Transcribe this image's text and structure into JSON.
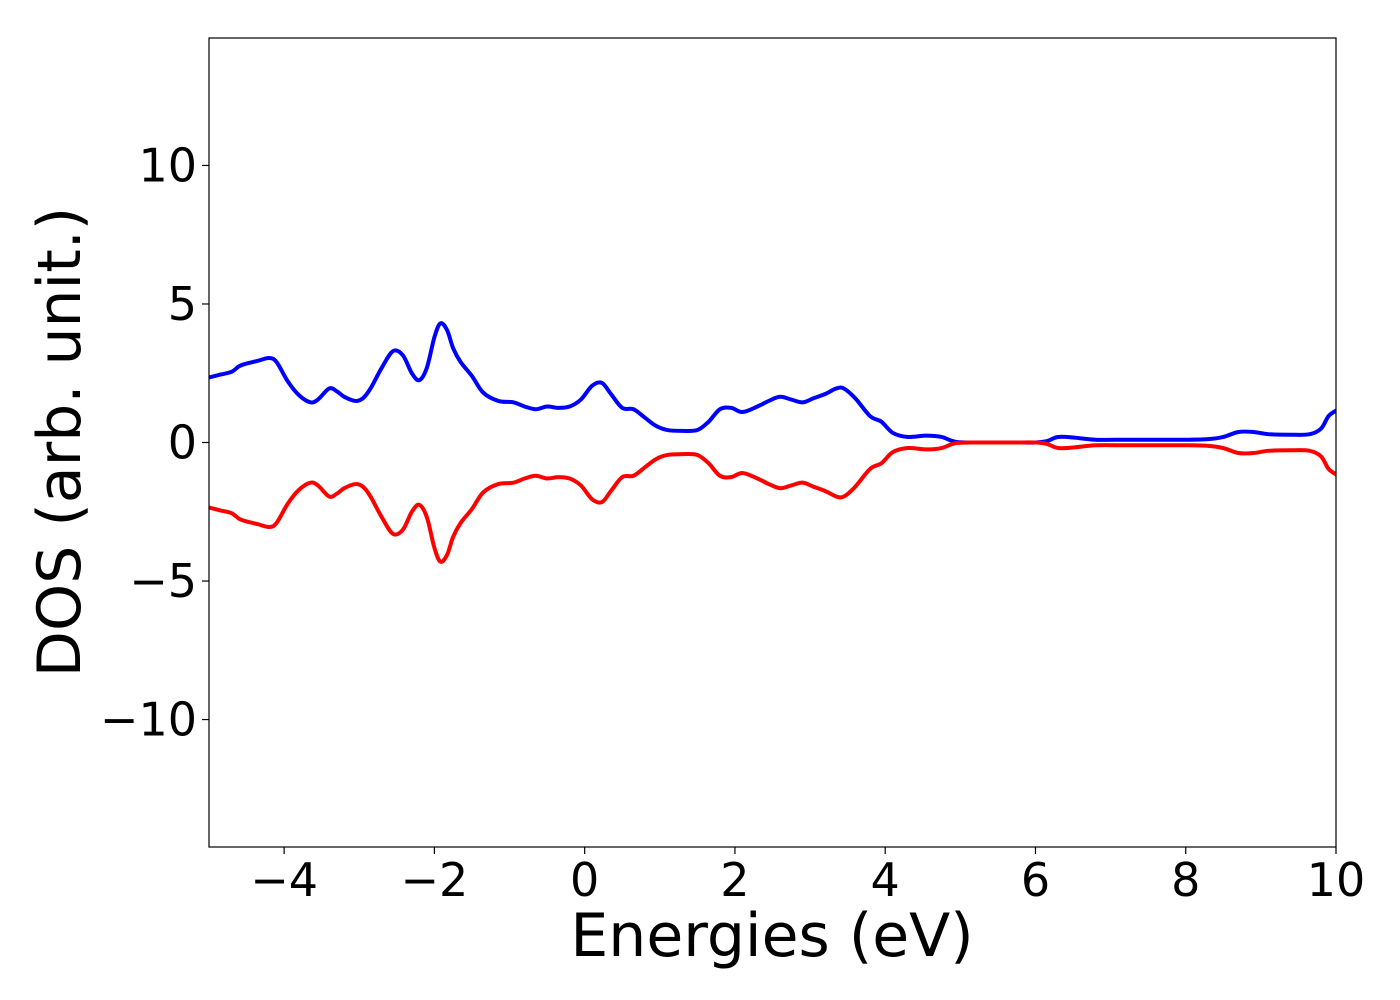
{
  "chart_data": {
    "type": "line",
    "title": "",
    "xlabel": "Energies (eV)",
    "ylabel": "DOS (arb. unit.)",
    "xlim": [
      -5,
      10
    ],
    "ylim": [
      -14.6,
      14.6
    ],
    "xticks": [
      {
        "value": -4,
        "label": "−4"
      },
      {
        "value": -2,
        "label": "−2"
      },
      {
        "value": 0,
        "label": "0"
      },
      {
        "value": 2,
        "label": "2"
      },
      {
        "value": 4,
        "label": "4"
      },
      {
        "value": 6,
        "label": "6"
      },
      {
        "value": 8,
        "label": "8"
      },
      {
        "value": 10,
        "label": "10"
      }
    ],
    "yticks": [
      {
        "value": -10,
        "label": "−10"
      },
      {
        "value": -5,
        "label": "−5"
      },
      {
        "value": 0,
        "label": "0"
      },
      {
        "value": 5,
        "label": "5"
      },
      {
        "value": 10,
        "label": "10"
      }
    ],
    "grid": false,
    "legend": "none",
    "series": [
      {
        "color": "#0000ff",
        "x": [
          -5.0,
          -4.85,
          -4.7,
          -4.6,
          -4.5,
          -4.35,
          -4.2,
          -4.1,
          -3.95,
          -3.8,
          -3.65,
          -3.55,
          -3.4,
          -3.3,
          -3.2,
          -3.05,
          -2.95,
          -2.85,
          -2.7,
          -2.55,
          -2.42,
          -2.3,
          -2.2,
          -2.1,
          -2.0,
          -1.92,
          -1.83,
          -1.75,
          -1.65,
          -1.5,
          -1.35,
          -1.15,
          -0.95,
          -0.8,
          -0.65,
          -0.5,
          -0.35,
          -0.2,
          -0.05,
          0.1,
          0.23,
          0.35,
          0.5,
          0.65,
          0.8,
          0.95,
          1.1,
          1.3,
          1.5,
          1.65,
          1.8,
          1.95,
          2.1,
          2.3,
          2.45,
          2.6,
          2.75,
          2.9,
          3.05,
          3.2,
          3.35,
          3.45,
          3.6,
          3.8,
          3.95,
          4.1,
          4.3,
          4.55,
          4.75,
          4.95,
          5.3,
          5.7,
          6.0,
          6.15,
          6.3,
          6.5,
          6.8,
          7.2,
          7.6,
          8.0,
          8.3,
          8.5,
          8.7,
          8.9,
          9.1,
          9.4,
          9.65,
          9.8,
          9.9,
          10.0
        ],
        "y": [
          2.35,
          2.45,
          2.55,
          2.75,
          2.85,
          2.95,
          3.05,
          2.9,
          2.2,
          1.7,
          1.45,
          1.55,
          1.95,
          1.85,
          1.65,
          1.5,
          1.6,
          1.95,
          2.7,
          3.3,
          3.15,
          2.5,
          2.25,
          2.7,
          3.8,
          4.3,
          4.05,
          3.4,
          2.9,
          2.4,
          1.8,
          1.5,
          1.45,
          1.3,
          1.2,
          1.3,
          1.25,
          1.3,
          1.55,
          2.05,
          2.15,
          1.75,
          1.25,
          1.2,
          0.9,
          0.6,
          0.45,
          0.42,
          0.45,
          0.75,
          1.2,
          1.25,
          1.1,
          1.3,
          1.5,
          1.65,
          1.55,
          1.45,
          1.6,
          1.75,
          1.95,
          1.95,
          1.6,
          0.95,
          0.75,
          0.35,
          0.2,
          0.25,
          0.2,
          0.02,
          0.0,
          0.0,
          0.0,
          0.05,
          0.2,
          0.18,
          0.1,
          0.1,
          0.1,
          0.1,
          0.12,
          0.2,
          0.38,
          0.38,
          0.3,
          0.28,
          0.3,
          0.5,
          0.95,
          1.15
        ]
      },
      {
        "color": "#ff0000",
        "x": [
          -5.0,
          -4.85,
          -4.7,
          -4.6,
          -4.5,
          -4.35,
          -4.2,
          -4.1,
          -3.95,
          -3.8,
          -3.65,
          -3.55,
          -3.4,
          -3.3,
          -3.2,
          -3.05,
          -2.95,
          -2.85,
          -2.7,
          -2.55,
          -2.42,
          -2.3,
          -2.2,
          -2.1,
          -2.0,
          -1.92,
          -1.83,
          -1.75,
          -1.65,
          -1.5,
          -1.35,
          -1.15,
          -0.95,
          -0.8,
          -0.65,
          -0.5,
          -0.35,
          -0.2,
          -0.05,
          0.1,
          0.23,
          0.35,
          0.5,
          0.65,
          0.8,
          0.95,
          1.1,
          1.3,
          1.5,
          1.65,
          1.8,
          1.95,
          2.1,
          2.3,
          2.45,
          2.6,
          2.75,
          2.9,
          3.05,
          3.2,
          3.35,
          3.45,
          3.6,
          3.8,
          3.95,
          4.1,
          4.3,
          4.55,
          4.75,
          4.95,
          5.3,
          5.7,
          6.0,
          6.15,
          6.3,
          6.5,
          6.8,
          7.2,
          7.6,
          8.0,
          8.3,
          8.5,
          8.7,
          8.9,
          9.1,
          9.4,
          9.65,
          9.8,
          9.9,
          10.0
        ],
        "y": [
          -2.35,
          -2.45,
          -2.55,
          -2.75,
          -2.85,
          -2.95,
          -3.05,
          -2.9,
          -2.2,
          -1.7,
          -1.45,
          -1.55,
          -1.95,
          -1.85,
          -1.65,
          -1.5,
          -1.6,
          -1.95,
          -2.7,
          -3.3,
          -3.15,
          -2.5,
          -2.25,
          -2.7,
          -3.8,
          -4.3,
          -4.05,
          -3.4,
          -2.9,
          -2.4,
          -1.8,
          -1.5,
          -1.45,
          -1.3,
          -1.2,
          -1.3,
          -1.25,
          -1.3,
          -1.55,
          -2.05,
          -2.15,
          -1.75,
          -1.25,
          -1.2,
          -0.9,
          -0.6,
          -0.45,
          -0.42,
          -0.45,
          -0.75,
          -1.2,
          -1.25,
          -1.1,
          -1.3,
          -1.5,
          -1.65,
          -1.55,
          -1.45,
          -1.6,
          -1.75,
          -1.95,
          -1.95,
          -1.6,
          -0.95,
          -0.75,
          -0.35,
          -0.2,
          -0.25,
          -0.2,
          -0.02,
          0.0,
          0.0,
          0.0,
          -0.05,
          -0.2,
          -0.18,
          -0.1,
          -0.1,
          -0.1,
          -0.1,
          -0.12,
          -0.2,
          -0.38,
          -0.38,
          -0.3,
          -0.28,
          -0.3,
          -0.5,
          -0.95,
          -1.15
        ]
      }
    ]
  }
}
